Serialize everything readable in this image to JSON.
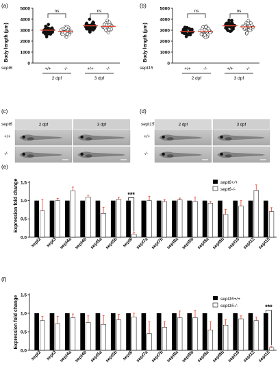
{
  "panels": {
    "a": "(a)",
    "b": "(b)",
    "c": "(c)",
    "d": "(d)",
    "e": "(e)",
    "f": "(f)"
  },
  "scatter_common": {
    "ylabel": "Body length (μm)",
    "yticks": [
      "0",
      "1000",
      "2000",
      "3000",
      "4000",
      "5000"
    ],
    "genotype_labels": [
      "+/+",
      "-/-",
      "+/+",
      "-/-"
    ],
    "stage_labels": [
      "2 dpf",
      "3 dpf"
    ],
    "ns_labels": [
      "ns",
      "ns"
    ],
    "mean_line_color": "#e8402a"
  },
  "panel_a": {
    "gene": "sept6"
  },
  "panel_b": {
    "gene": "sept15"
  },
  "images_c": {
    "gene": "sept6",
    "cols": [
      "2 dpf",
      "3 dpf"
    ],
    "rows": [
      "+/+",
      "-/-"
    ]
  },
  "images_d": {
    "gene": "sept15",
    "cols": [
      "2 dpf",
      "3 dpf"
    ],
    "rows": [
      "+/+",
      "-/-"
    ]
  },
  "bar_common": {
    "ylabel": "Expression fold change",
    "yticks": [
      "0.0",
      "0.5",
      "1.0",
      "1.5"
    ],
    "categories": [
      "sept2",
      "sept3",
      "sept4a",
      "sept4b",
      "sept5a",
      "sept5b",
      "sept6",
      "sept7a",
      "sept7b",
      "sept8a",
      "sept8b",
      "sept9a",
      "sept9b",
      "sept10",
      "sept12",
      "sept15"
    ],
    "error_color": "#e8402a"
  },
  "panel_e_legend": [
    "sept6+/+",
    "sept6-/-"
  ],
  "panel_e_significance": "***",
  "panel_f_legend": [
    "sept15+/+",
    "sept15-/-"
  ],
  "panel_f_significance": "***",
  "chart_data": [
    {
      "panel": "a",
      "type": "scatter",
      "ylabel": "Body length (μm)",
      "ylim": [
        0,
        5000
      ],
      "groups": [
        {
          "genotype": "+/+",
          "stage": "2 dpf",
          "fill": "black",
          "mean": 3000
        },
        {
          "genotype": "-/-",
          "stage": "2 dpf",
          "fill": "white",
          "mean": 2900
        },
        {
          "genotype": "+/+",
          "stage": "3 dpf",
          "fill": "black",
          "mean": 3400
        },
        {
          "genotype": "-/-",
          "stage": "3 dpf",
          "fill": "white",
          "mean": 3350
        }
      ],
      "comparisons": [
        "ns",
        "ns"
      ]
    },
    {
      "panel": "b",
      "type": "scatter",
      "ylabel": "Body length (μm)",
      "ylim": [
        0,
        5000
      ],
      "groups": [
        {
          "genotype": "+/+",
          "stage": "2 dpf",
          "fill": "black",
          "mean": 2900
        },
        {
          "genotype": "-/-",
          "stage": "2 dpf",
          "fill": "white",
          "mean": 2850
        },
        {
          "genotype": "+/+",
          "stage": "3 dpf",
          "fill": "black",
          "mean": 3400
        },
        {
          "genotype": "-/-",
          "stage": "3 dpf",
          "fill": "white",
          "mean": 3300
        }
      ],
      "comparisons": [
        "ns",
        "ns"
      ]
    },
    {
      "panel": "e",
      "type": "bar",
      "ylabel": "Expression fold change",
      "ylim": [
        0,
        1.5
      ],
      "categories": [
        "sept2",
        "sept3",
        "sept4a",
        "sept4b",
        "sept5a",
        "sept5b",
        "sept6",
        "sept7a",
        "sept7b",
        "sept8a",
        "sept8b",
        "sept9a",
        "sept9b",
        "sept10",
        "sept12",
        "sept15"
      ],
      "series": [
        {
          "name": "sept6+/+",
          "fill": "black",
          "values": [
            1,
            1,
            1,
            1,
            1,
            1,
            1,
            1,
            1,
            1,
            1,
            1,
            1,
            1,
            1,
            1
          ]
        },
        {
          "name": "sept6-/-",
          "fill": "white",
          "values": [
            0.72,
            1.0,
            1.27,
            1.1,
            0.65,
            1.03,
            0.08,
            1.0,
            0.97,
            1.02,
            0.98,
            0.93,
            0.62,
            0.85,
            1.28,
            0.7
          ],
          "errors": [
            0.32,
            0.06,
            0.1,
            0.05,
            0.17,
            0.06,
            0.04,
            0.12,
            0.06,
            0.05,
            0.12,
            0.05,
            0.14,
            0.15,
            0.15,
            0.11
          ]
        }
      ],
      "significance": [
        {
          "category": "sept6",
          "label": "***"
        }
      ]
    },
    {
      "panel": "f",
      "type": "bar",
      "ylabel": "Expression fold change",
      "ylim": [
        0,
        1.5
      ],
      "categories": [
        "sept2",
        "sept3",
        "sept4a",
        "sept4b",
        "sept5a",
        "sept5b",
        "sept6",
        "sept7a",
        "sept7b",
        "sept8a",
        "sept8b",
        "sept9a",
        "sept9b",
        "sept10",
        "sept12",
        "sept15"
      ],
      "series": [
        {
          "name": "sept15+/+",
          "fill": "black",
          "values": [
            1,
            1,
            1,
            1,
            1,
            1,
            1,
            1,
            1,
            1,
            1,
            1,
            1,
            1,
            1,
            1
          ]
        },
        {
          "name": "sept15-/-",
          "fill": "white",
          "values": [
            0.8,
            0.72,
            0.88,
            0.75,
            0.7,
            0.82,
            0.9,
            0.45,
            0.62,
            0.88,
            0.88,
            0.55,
            0.68,
            0.85,
            0.8,
            0.07
          ],
          "errors": [
            0.12,
            0.2,
            0.1,
            0.18,
            0.24,
            0.15,
            0.1,
            0.32,
            0.15,
            0.18,
            0.2,
            0.22,
            0.15,
            0.08,
            0.1,
            0.03
          ]
        }
      ],
      "significance": [
        {
          "category": "sept15",
          "label": "***"
        }
      ]
    }
  ]
}
